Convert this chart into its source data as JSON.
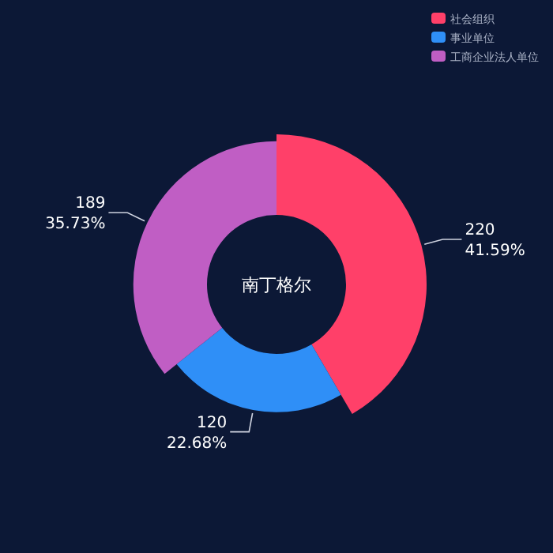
{
  "chart_data": {
    "type": "donut",
    "title": "南丁格尔",
    "categories": [
      "社会组织",
      "事业单位",
      "工商企业法人单位"
    ],
    "values": [
      220,
      120,
      189
    ],
    "colors": [
      "#ff4069",
      "#2f8ff7",
      "#c05ec4"
    ],
    "data_labels": true,
    "legend": "top right",
    "annotations": [
      {
        "text": "41.59%",
        "x": "社会组织"
      },
      {
        "text": "22.68%",
        "x": "事业单位"
      },
      {
        "text": "35.73%",
        "x": "工商企业法人单位"
      }
    ]
  }
}
